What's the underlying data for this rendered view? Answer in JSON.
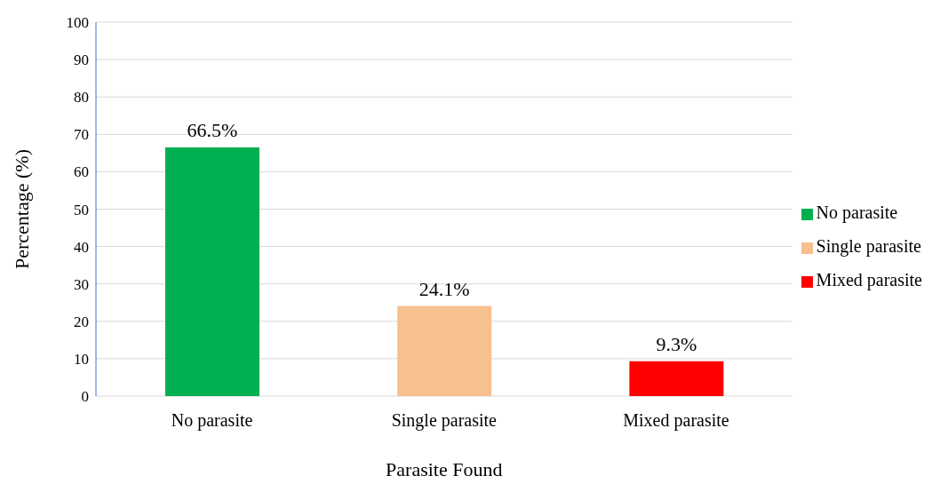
{
  "chart_data": {
    "type": "bar",
    "xlabel": "Parasite Found",
    "ylabel": "Percentage (%)",
    "categories": [
      "No parasite",
      "Single parasite",
      "Mixed parasite"
    ],
    "stacked": true,
    "series": [
      {
        "name": "No parasite",
        "color": "#00b050",
        "values": [
          66.5,
          null,
          null
        ],
        "value_labels": [
          "66.5%",
          null,
          null
        ]
      },
      {
        "name": "Single parasite",
        "color": "#f8bf8f",
        "values": [
          null,
          24.1,
          null
        ],
        "value_labels": [
          null,
          "24.1%",
          null
        ]
      },
      {
        "name": "Mixed parasite",
        "color": "#ff0000",
        "values": [
          null,
          null,
          9.3
        ],
        "value_labels": [
          null,
          null,
          "9.3%"
        ]
      }
    ],
    "ylim": [
      0,
      100
    ],
    "yticks": [
      0,
      10,
      20,
      30,
      40,
      50,
      60,
      70,
      80,
      90,
      100
    ],
    "grid": "y",
    "legend": "right"
  }
}
